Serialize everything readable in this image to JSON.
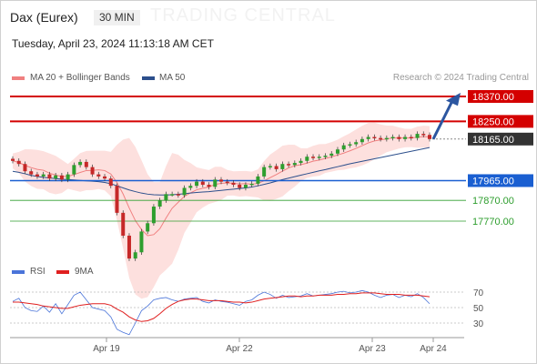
{
  "header": {
    "title": "Dax (Eurex)",
    "timeframe": "30 MIN",
    "datetime": "Tuesday, April 23, 2024 11:13:18 AM CET"
  },
  "watermark": "TRADING CENTRAL",
  "legend_top": [
    {
      "label": "MA 20 + Bollinger Bands",
      "color": "#f08080"
    },
    {
      "label": "MA 50",
      "color": "#2c4f8c"
    }
  ],
  "credit": "Research © 2024 Trading Central",
  "legend_bottom": [
    {
      "label": "RSI",
      "color": "#4a74d9"
    },
    {
      "label": "9MA",
      "color": "#e02020"
    }
  ],
  "colors": {
    "resistance": "#d40000",
    "pivot": "#1a5fd1",
    "support": "#2e9e2e",
    "last": "#333333",
    "up": "#2e9e2e",
    "down": "#c62828",
    "band": "#fde0de"
  },
  "chart_data": {
    "type": "candlestick",
    "y_range": [
      17520,
      18430
    ],
    "x_ticks": [
      "Apr 19",
      "Apr 22",
      "Apr 23",
      "Apr 24"
    ],
    "levels": [
      {
        "value": "18370.00",
        "price": 18370,
        "kind": "resistance"
      },
      {
        "value": "18250.00",
        "price": 18250,
        "kind": "resistance"
      },
      {
        "value": "18165.00",
        "price": 18165,
        "kind": "last"
      },
      {
        "value": "17965.00",
        "price": 17965,
        "kind": "pivot"
      },
      {
        "value": "17870.00",
        "price": 17870,
        "kind": "support"
      },
      {
        "value": "17770.00",
        "price": 17770,
        "kind": "support"
      }
    ],
    "closes": [
      18060,
      18045,
      18010,
      17995,
      17985,
      17995,
      17975,
      17990,
      17970,
      17995,
      18040,
      18055,
      18030,
      17995,
      17985,
      17975,
      17940,
      17810,
      17700,
      17590,
      17620,
      17720,
      17760,
      17840,
      17870,
      17900,
      17900,
      17895,
      17930,
      17940,
      17960,
      17945,
      17935,
      17970,
      17960,
      17955,
      17945,
      17930,
      17945,
      17950,
      17985,
      18030,
      18035,
      18020,
      18045,
      18040,
      18050,
      18060,
      18080,
      18075,
      18080,
      18085,
      18095,
      18115,
      18135,
      18140,
      18150,
      18165,
      18175,
      18170,
      18165,
      18170,
      18175,
      18165,
      18175,
      18170,
      18190,
      18185,
      18165
    ],
    "ma50": [
      18010,
      18005,
      17998,
      17990,
      17985,
      17980,
      17978,
      17975,
      17972,
      17970,
      17968,
      17966,
      17964,
      17962,
      17960,
      17956,
      17950,
      17940,
      17930,
      17920,
      17912,
      17905,
      17900,
      17897,
      17896,
      17896,
      17897,
      17899,
      17902,
      17905,
      17908,
      17910,
      17912,
      17915,
      17918,
      17921,
      17924,
      17927,
      17930,
      17934,
      17940,
      17947,
      17954,
      17962,
      17970,
      17977,
      17984,
      17991,
      17998,
      18005,
      18012,
      18018,
      18025,
      18032,
      18039,
      18046,
      18052,
      18058,
      18064,
      18070,
      18076,
      18082,
      18088,
      18094,
      18100,
      18106,
      18112,
      18118,
      18124
    ],
    "rsi": {
      "ticks": [
        "70",
        "50",
        "30"
      ],
      "values": [
        58,
        62,
        50,
        46,
        45,
        52,
        44,
        55,
        42,
        54,
        66,
        70,
        60,
        50,
        48,
        46,
        38,
        22,
        18,
        15,
        30,
        46,
        52,
        60,
        62,
        63,
        60,
        58,
        61,
        62,
        63,
        58,
        56,
        60,
        58,
        57,
        55,
        53,
        58,
        60,
        66,
        70,
        67,
        62,
        66,
        63,
        64,
        65,
        68,
        65,
        66,
        67,
        68,
        70,
        71,
        69,
        70,
        72,
        70,
        66,
        63,
        66,
        67,
        63,
        66,
        64,
        68,
        63,
        55
      ],
      "ma9": [
        57,
        57,
        56,
        55,
        54,
        52,
        51,
        50,
        49,
        49,
        51,
        53,
        54,
        55,
        55,
        55,
        53,
        48,
        44,
        38,
        34,
        32,
        33,
        36,
        42,
        49,
        54,
        58,
        60,
        61,
        61,
        60,
        59,
        59,
        59,
        58,
        57,
        57,
        56,
        57,
        59,
        61,
        62,
        63,
        64,
        65,
        65,
        64,
        65,
        65,
        66,
        66,
        66,
        67,
        67,
        68,
        68,
        69,
        69,
        69,
        68,
        67,
        67,
        67,
        66,
        66,
        66,
        65,
        64
      ]
    }
  }
}
